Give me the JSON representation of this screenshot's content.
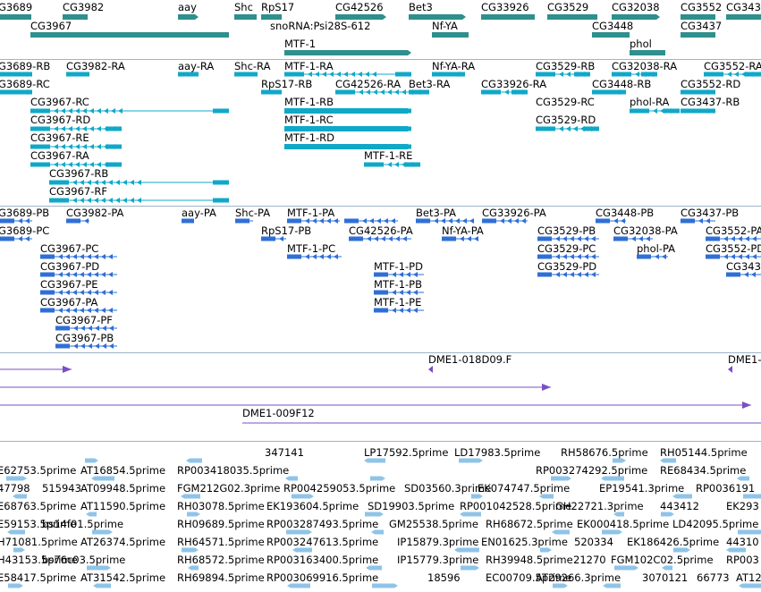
{
  "colors": {
    "gene": "#2f8f8c",
    "mrna": "#10a8c8",
    "protein": "#2f6fd6",
    "bac": "#7a4fc4",
    "est": "#8fc4e8",
    "separator": "#9fb3c8"
  },
  "tracks": {
    "genes": {
      "labels": [
        "G3689",
        "CG3982",
        "aay",
        "Shc",
        "RpS17",
        "CG42526",
        "Bet3",
        "CG33926",
        "CG3529",
        "CG32038",
        "CG3552",
        "CG343",
        "CG3967",
        "snoRNA:Psi28S-612",
        "Nf-YA",
        "CG3448",
        "CG3437",
        "MTF-1",
        "phol"
      ]
    },
    "transcripts": {
      "labels": [
        "G3689-RB",
        "CG3982-RA",
        "aay-RA",
        "Shc-RA",
        "MTF-1-RA",
        "Nf-YA-RA",
        "CG3529-RB",
        "CG32038-RA",
        "CG3552-RA",
        "G3689-RC",
        "RpS17-RB",
        "CG42526-RA",
        "Bet3-RA",
        "CG33926-RA",
        "CG3448-RB",
        "CG3552-RD",
        "CG3967-RC",
        "MTF-1-RB",
        "CG3529-RC",
        "phol-RA",
        "CG3437-RB",
        "CG3967-RD",
        "MTF-1-RC",
        "CG3529-RD",
        "CG3967-RE",
        "MTF-1-RD",
        "CG3967-RA",
        "MTF-1-RE",
        "CG3967-RB",
        "CG3967-RF"
      ]
    },
    "proteins": {
      "labels": [
        "G3689-PB",
        "CG3982-PA",
        "aay-PA",
        "Shc-PA",
        "MTF-1-PA",
        "Bet3-PA",
        "CG33926-PA",
        "CG3448-PB",
        "CG3437-PB",
        "G3689-PC",
        "RpS17-PB",
        "CG42526-PA",
        "Nf-YA-PA",
        "CG3529-PB",
        "CG32038-PA",
        "CG3552-PA",
        "CG3967-PC",
        "MTF-1-PC",
        "CG3529-PC",
        "phol-PA",
        "CG3552-PD",
        "CG3967-PD",
        "MTF-1-PD",
        "CG3529-PD",
        "CG343",
        "CG3967-PE",
        "MTF-1-PB",
        "CG3967-PA",
        "MTF-1-PE",
        "CG3967-PF",
        "CG3967-PB"
      ]
    },
    "bacs": {
      "labels": [
        "DME1-018D09.F",
        "DME1-",
        "DME1-009F12"
      ]
    },
    "ests": {
      "labels": [
        "347141",
        "LP17592.5prime",
        "LD17983.5prime",
        "RH58676.5prime",
        "RH05144.5prime",
        "E62753.5prime",
        "AT16854.5prime",
        "RP003418035.5prime",
        "RP003274292.5prime",
        "RE68434.5prime",
        "47798",
        "515943",
        "AT09948.5prime",
        "FGM212G02.3prime",
        "RP004259053.5prime",
        "SD03560.3prime",
        "EK074747.5prime",
        "EP19541.3prime",
        "RP0036191",
        "E68763.5prime",
        "AT11590.5prime",
        "RH03078.5prime",
        "EK193604.5prime",
        "SD19903.5prime",
        "RP001042528.5prime",
        "GH22721.3prime",
        "443412",
        "EK293",
        "E59153.5prime",
        "bs14f01.5prime",
        "RH09689.5prime",
        "RP003287493.5prime",
        "GM25538.5prime",
        "RH68672.5prime",
        "EK000418.5prime",
        "LD42095.5prime",
        "H71081.5prime",
        "AT26374.5prime",
        "RH64571.5prime",
        "RP003247613.5prime",
        "IP15879.3prime",
        "EN01625.3prime",
        "520334",
        "EK186426.5prime",
        "44310",
        "H43153.5prime",
        "bs76c03.5prime",
        "RH68572.5prime",
        "RP003163400.5prime",
        "IP15779.3prime",
        "RH39948.5prime",
        "21270",
        "FGM102C02.5prime",
        "RP003",
        "E58417.5prime",
        "AT31542.5prime",
        "RH69894.5prime",
        "RP003069916.5prime",
        "18596",
        "EC00709.5prime",
        "AT29266.3prime",
        "3070121",
        "66773",
        "AT12592"
      ]
    }
  }
}
